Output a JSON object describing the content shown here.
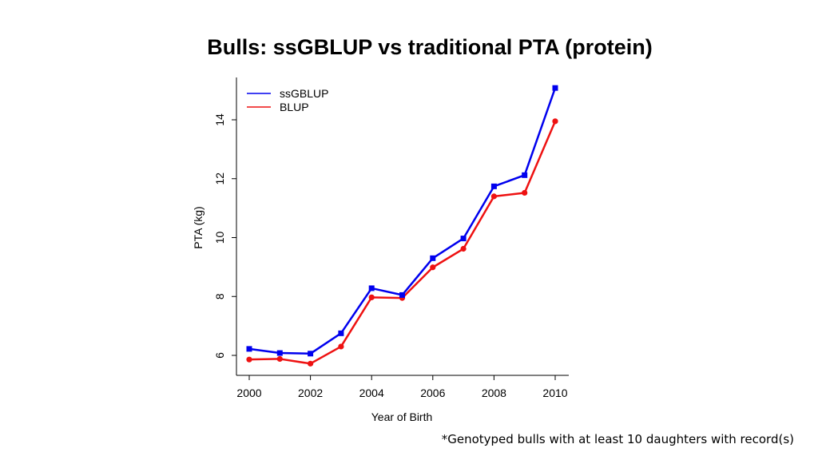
{
  "slide": {
    "title": "Bulls: ssGBLUP vs traditional PTA (protein)",
    "footnote": "*Genotyped bulls with at least 10 daughters with record(s)"
  },
  "chart_data": {
    "type": "line",
    "title": "Bulls: ssGBLUP vs traditional PTA (protein)",
    "xlabel": "Year of Birth",
    "ylabel": "PTA (kg)",
    "x": [
      2000,
      2001,
      2002,
      2003,
      2004,
      2005,
      2006,
      2007,
      2008,
      2009,
      2010
    ],
    "xticks": [
      2000,
      2002,
      2004,
      2006,
      2008,
      2010
    ],
    "yticks": [
      6,
      8,
      10,
      12,
      14
    ],
    "xlim": [
      2000,
      2010
    ],
    "ylim": [
      6,
      15
    ],
    "grid": false,
    "legend_position": "top-left",
    "series": [
      {
        "name": "ssGBLUP",
        "color": "#0000ee",
        "marker": "square",
        "values": [
          6.22,
          6.08,
          6.06,
          6.75,
          8.28,
          8.05,
          9.3,
          9.97,
          11.74,
          12.12,
          15.08
        ]
      },
      {
        "name": "BLUP",
        "color": "#ee1111",
        "marker": "circle",
        "values": [
          5.86,
          5.88,
          5.72,
          6.3,
          7.97,
          7.95,
          8.99,
          9.62,
          11.4,
          11.52,
          13.95
        ]
      }
    ]
  }
}
